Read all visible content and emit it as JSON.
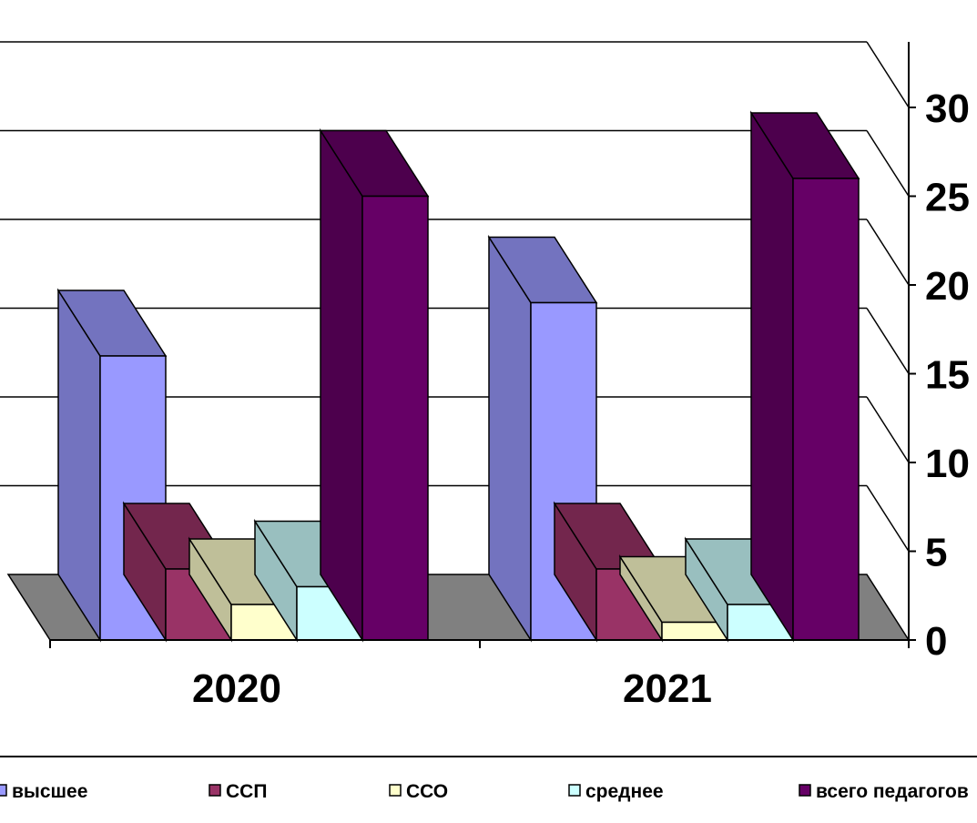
{
  "chart_data": {
    "type": "bar",
    "title": "",
    "xlabel": "",
    "ylabel": "",
    "categories": [
      "2020",
      "2021"
    ],
    "ylim": [
      0,
      30
    ],
    "yticks": [
      "0",
      "5",
      "10",
      "15",
      "20",
      "25",
      "30"
    ],
    "series": [
      {
        "name": "высшее",
        "values": [
          16,
          19
        ],
        "color": "#9999FF"
      },
      {
        "name": "ССП",
        "values": [
          4,
          4
        ],
        "color": "#993366"
      },
      {
        "name": "ССО",
        "values": [
          2,
          1
        ],
        "color": "#FFFFCC"
      },
      {
        "name": "среднее",
        "values": [
          3,
          2
        ],
        "color": "#CCFFFF"
      },
      {
        "name": "всего педагогов",
        "values": [
          25,
          26
        ],
        "color": "#660066"
      }
    ],
    "gridlines": true,
    "style": "3d-clustered-column",
    "legend_position": "bottom"
  }
}
